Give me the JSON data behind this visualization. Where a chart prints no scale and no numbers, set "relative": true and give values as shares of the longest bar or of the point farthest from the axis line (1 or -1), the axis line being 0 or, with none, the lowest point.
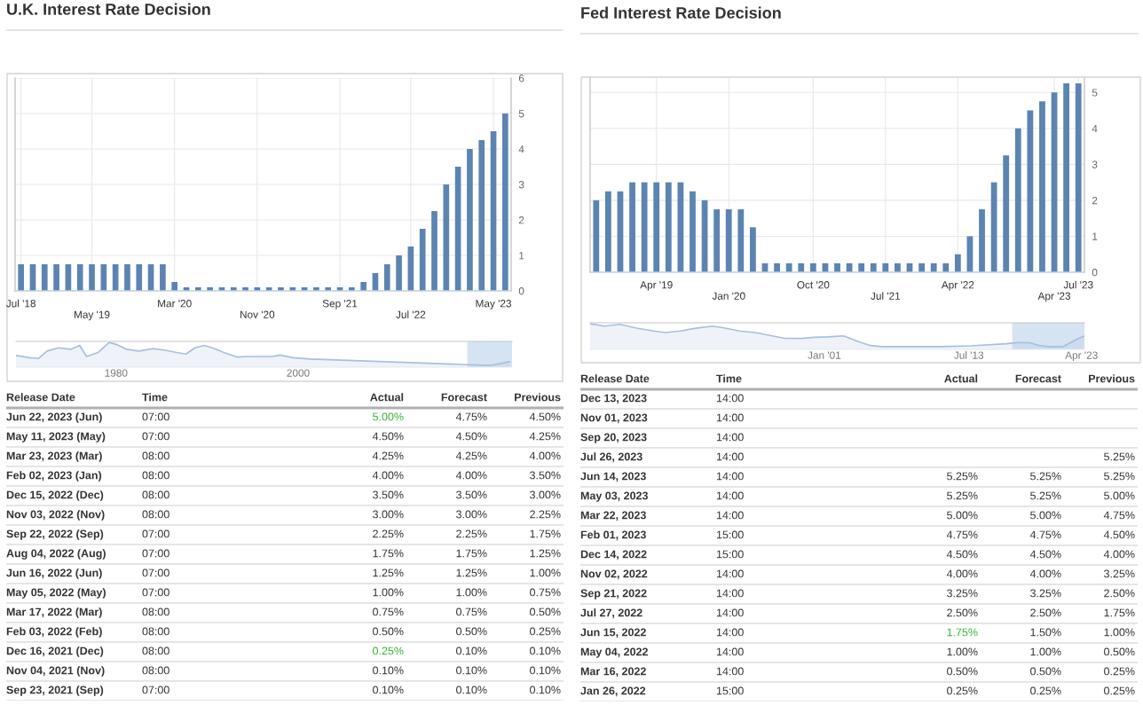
{
  "chart_data": [
    {
      "type": "bar",
      "title": "U.K. Interest Rate Decision",
      "categories": [
        "Jul '18",
        null,
        null,
        null,
        null,
        null,
        "May '19",
        null,
        null,
        null,
        null,
        null,
        null,
        "Mar '20",
        null,
        null,
        null,
        null,
        null,
        null,
        "Nov '20",
        null,
        null,
        null,
        null,
        null,
        null,
        "Sep '21",
        null,
        null,
        null,
        null,
        null,
        "Jul '22",
        null,
        null,
        null,
        null,
        null,
        null,
        "May '23",
        null
      ],
      "values": [
        0.75,
        0.75,
        0.75,
        0.75,
        0.75,
        0.75,
        0.75,
        0.75,
        0.75,
        0.75,
        0.75,
        0.75,
        0.75,
        0.25,
        0.1,
        0.1,
        0.1,
        0.1,
        0.1,
        0.1,
        0.1,
        0.1,
        0.1,
        0.1,
        0.1,
        0.1,
        0.1,
        0.1,
        0.1,
        0.25,
        0.5,
        0.75,
        1.0,
        1.25,
        1.75,
        2.25,
        3.0,
        3.5,
        4.0,
        4.25,
        4.5,
        5.0
      ],
      "color": "#5b84b1",
      "ylim": [
        0,
        6
      ],
      "yticks": [
        0,
        1,
        2,
        3,
        4,
        5,
        6
      ],
      "grid": true
    },
    {
      "type": "area",
      "relative": true,
      "x": [
        "1969-01",
        "1970-07",
        "1971-07",
        "1972-06",
        "1973-09",
        "1975-01",
        "1976-01",
        "1976-10",
        "1978-01",
        "1979-04",
        "1980-03",
        "1981-03",
        "1982-07",
        "1984-02",
        "1985-06",
        "1986-09",
        "1987-09",
        "1988-09",
        "1989-09",
        "1990-08",
        "1991-11",
        "1993-04",
        "1994-07",
        "1995-10",
        "1997-03",
        "1998-01",
        "1999-06",
        "2001-06",
        "2018-08",
        "2021-03",
        "2023-04"
      ],
      "values": [
        0.47,
        0.38,
        0.35,
        0.65,
        0.78,
        0.72,
        0.88,
        0.43,
        0.59,
        1.0,
        0.9,
        0.72,
        0.65,
        0.75,
        0.68,
        0.59,
        0.53,
        0.78,
        0.88,
        0.78,
        0.59,
        0.41,
        0.43,
        0.43,
        0.43,
        0.49,
        0.38,
        0.33,
        0.1,
        0.07,
        0.22
      ],
      "color": "#a8bfdc",
      "xlim": [
        "1969-01",
        "2023-07"
      ],
      "xticks": [
        {
          "value": "1980-01",
          "label": "1980"
        },
        {
          "value": "2000-01",
          "label": "2000"
        }
      ],
      "tick_labels": "x",
      "bands": [
        {
          "axis": "x",
          "from": "2018-08",
          "to": "2023-07",
          "color": "#d6e3f2"
        }
      ]
    },
    {
      "type": "other",
      "categories": [
        "Release Date",
        "Time",
        "Actual",
        "Forecast",
        "Previous"
      ],
      "cell_labels": [
        [
          "Jun 22, 2023 (Jun)",
          "07:00",
          "5.00%",
          "4.75%",
          "4.50%"
        ],
        [
          "May 11, 2023 (May)",
          "07:00",
          "4.50%",
          "4.50%",
          "4.25%"
        ],
        [
          "Mar 23, 2023 (Mar)",
          "08:00",
          "4.25%",
          "4.25%",
          "4.00%"
        ],
        [
          "Feb 02, 2023 (Jan)",
          "08:00",
          "4.00%",
          "4.00%",
          "3.50%"
        ],
        [
          "Dec 15, 2022 (Dec)",
          "08:00",
          "3.50%",
          "3.50%",
          "3.00%"
        ],
        [
          "Nov 03, 2022 (Nov)",
          "08:00",
          "3.00%",
          "3.00%",
          "2.25%"
        ],
        [
          "Sep 22, 2022 (Sep)",
          "07:00",
          "2.25%",
          "2.25%",
          "1.75%"
        ],
        [
          "Aug 04, 2022 (Aug)",
          "07:00",
          "1.75%",
          "1.75%",
          "1.25%"
        ],
        [
          "Jun 16, 2022 (Jun)",
          "07:00",
          "1.25%",
          "1.25%",
          "1.00%"
        ],
        [
          "May 05, 2022 (May)",
          "07:00",
          "1.00%",
          "1.00%",
          "0.75%"
        ],
        [
          "Mar 17, 2022 (Mar)",
          "08:00",
          "0.75%",
          "0.75%",
          "0.50%"
        ],
        [
          "Feb 03, 2022 (Feb)",
          "08:00",
          "0.50%",
          "0.50%",
          "0.25%"
        ],
        [
          "Dec 16, 2021 (Dec)",
          "08:00",
          "0.25%",
          "0.10%",
          "0.10%"
        ],
        [
          "Nov 04, 2021 (Nov)",
          "08:00",
          "0.10%",
          "0.10%",
          "0.10%"
        ],
        [
          "Sep 23, 2021 (Sep)",
          "07:00",
          "0.10%",
          "0.10%",
          "0.10%"
        ]
      ],
      "colors": [
        [
          null,
          null,
          "#36b336",
          null,
          null
        ],
        [
          null,
          null,
          null,
          null,
          null
        ],
        [
          null,
          null,
          null,
          null,
          null
        ],
        [
          null,
          null,
          null,
          null,
          null
        ],
        [
          null,
          null,
          null,
          null,
          null
        ],
        [
          null,
          null,
          null,
          null,
          null
        ],
        [
          null,
          null,
          null,
          null,
          null
        ],
        [
          null,
          null,
          null,
          null,
          null
        ],
        [
          null,
          null,
          null,
          null,
          null
        ],
        [
          null,
          null,
          null,
          null,
          null
        ],
        [
          null,
          null,
          null,
          null,
          null
        ],
        [
          null,
          null,
          null,
          null,
          null
        ],
        [
          null,
          null,
          "#36b336",
          null,
          null
        ],
        [
          null,
          null,
          null,
          null,
          null
        ],
        [
          null,
          null,
          null,
          null,
          null
        ]
      ]
    },
    {
      "type": "bar",
      "title": "Fed Interest Rate Decision",
      "categories": [
        null,
        null,
        null,
        null,
        null,
        "Apr '19",
        null,
        null,
        null,
        null,
        null,
        "Jan '20",
        null,
        null,
        null,
        null,
        null,
        null,
        "Oct '20",
        null,
        null,
        null,
        null,
        null,
        "Jul '21",
        null,
        null,
        null,
        null,
        null,
        "Apr '22",
        null,
        null,
        null,
        null,
        null,
        null,
        null,
        "Apr '23",
        null,
        "Jul '23"
      ],
      "values": [
        2.0,
        2.25,
        2.25,
        2.5,
        2.5,
        2.5,
        2.5,
        2.5,
        2.25,
        2.0,
        1.75,
        1.75,
        1.75,
        1.25,
        0.25,
        0.25,
        0.25,
        0.25,
        0.25,
        0.25,
        0.25,
        0.25,
        0.25,
        0.25,
        0.25,
        0.25,
        0.25,
        0.25,
        0.25,
        0.25,
        0.5,
        1.0,
        1.75,
        2.5,
        3.25,
        4.0,
        4.5,
        4.75,
        5.0,
        5.25,
        5.25
      ],
      "color": "#5b84b1",
      "ylim": [
        0,
        5.4
      ],
      "yticks": [
        0,
        1,
        2,
        3,
        4,
        5
      ],
      "grid": true
    },
    {
      "type": "area",
      "relative": true,
      "x": [
        "1980-10",
        "1982-01",
        "1983-05",
        "1984-09",
        "1986-04",
        "1987-04",
        "1988-08",
        "1989-10",
        "1991-05",
        "1992-05",
        "1993-09",
        "1995-01",
        "1996-07",
        "1997-07",
        "1999-02",
        "2000-02",
        "2001-05",
        "2002-09",
        "2004-03",
        "2005-01",
        "2006-01",
        "2008-08",
        "2011-02",
        "2013-09",
        "2016-10",
        "2017-10",
        "2018-10",
        "2019-08",
        "2020-05",
        "2021-09",
        "2022-07",
        "2023-03",
        "2023-07"
      ],
      "values": [
        1.0,
        0.91,
        0.98,
        0.84,
        0.72,
        0.66,
        0.72,
        0.82,
        0.91,
        0.84,
        0.72,
        0.66,
        0.53,
        0.44,
        0.43,
        0.47,
        0.49,
        0.53,
        0.27,
        0.15,
        0.11,
        0.11,
        0.11,
        0.14,
        0.22,
        0.27,
        0.26,
        0.15,
        0.11,
        0.11,
        0.31,
        0.47,
        0.52
      ],
      "color": "#a8bfdc",
      "xlim": [
        "1980-10",
        "2023-07"
      ],
      "xticks": [
        {
          "value": "2001-01",
          "label": "Jan '01"
        },
        {
          "value": "2013-07",
          "label": "Jul '13"
        },
        {
          "value": "2023-04",
          "label": "Apr '23"
        }
      ],
      "tick_labels": "x",
      "bands": [
        {
          "axis": "x",
          "from": "2017-04",
          "to": "2023-07",
          "color": "#d6e3f2"
        }
      ]
    },
    {
      "type": "other",
      "categories": [
        "Release Date",
        "Time",
        "Actual",
        "Forecast",
        "Previous"
      ],
      "cell_labels": [
        [
          "Dec 13, 2023",
          "14:00",
          null,
          null,
          null
        ],
        [
          "Nov 01, 2023",
          "14:00",
          null,
          null,
          null
        ],
        [
          "Sep 20, 2023",
          "14:00",
          null,
          null,
          null
        ],
        [
          "Jul 26, 2023",
          "14:00",
          null,
          null,
          "5.25%"
        ],
        [
          "Jun 14, 2023",
          "14:00",
          "5.25%",
          "5.25%",
          "5.25%"
        ],
        [
          "May 03, 2023",
          "14:00",
          "5.25%",
          "5.25%",
          "5.00%"
        ],
        [
          "Mar 22, 2023",
          "14:00",
          "5.00%",
          "5.00%",
          "4.75%"
        ],
        [
          "Feb 01, 2023",
          "15:00",
          "4.75%",
          "4.75%",
          "4.50%"
        ],
        [
          "Dec 14, 2022",
          "15:00",
          "4.50%",
          "4.50%",
          "4.00%"
        ],
        [
          "Nov 02, 2022",
          "14:00",
          "4.00%",
          "4.00%",
          "3.25%"
        ],
        [
          "Sep 21, 2022",
          "14:00",
          "3.25%",
          "3.25%",
          "2.50%"
        ],
        [
          "Jul 27, 2022",
          "14:00",
          "2.50%",
          "2.50%",
          "1.75%"
        ],
        [
          "Jun 15, 2022",
          "14:00",
          "1.75%",
          "1.50%",
          "1.00%"
        ],
        [
          "May 04, 2022",
          "14:00",
          "1.00%",
          "1.00%",
          "0.50%"
        ],
        [
          "Mar 16, 2022",
          "14:00",
          "0.50%",
          "0.50%",
          "0.25%"
        ],
        [
          "Jan 26, 2022",
          "15:00",
          "0.25%",
          "0.25%",
          "0.25%"
        ]
      ],
      "colors": [
        [
          null,
          null,
          null,
          null,
          null
        ],
        [
          null,
          null,
          null,
          null,
          null
        ],
        [
          null,
          null,
          null,
          null,
          null
        ],
        [
          null,
          null,
          null,
          null,
          null
        ],
        [
          null,
          null,
          null,
          null,
          null
        ],
        [
          null,
          null,
          null,
          null,
          null
        ],
        [
          null,
          null,
          null,
          null,
          null
        ],
        [
          null,
          null,
          null,
          null,
          null
        ],
        [
          null,
          null,
          null,
          null,
          null
        ],
        [
          null,
          null,
          null,
          null,
          null
        ],
        [
          null,
          null,
          null,
          null,
          null
        ],
        [
          null,
          null,
          null,
          null,
          null
        ],
        [
          null,
          null,
          "#36b336",
          null,
          null
        ],
        [
          null,
          null,
          null,
          null,
          null
        ],
        [
          null,
          null,
          null,
          null,
          null
        ],
        [
          null,
          null,
          null,
          null,
          null
        ]
      ]
    }
  ]
}
